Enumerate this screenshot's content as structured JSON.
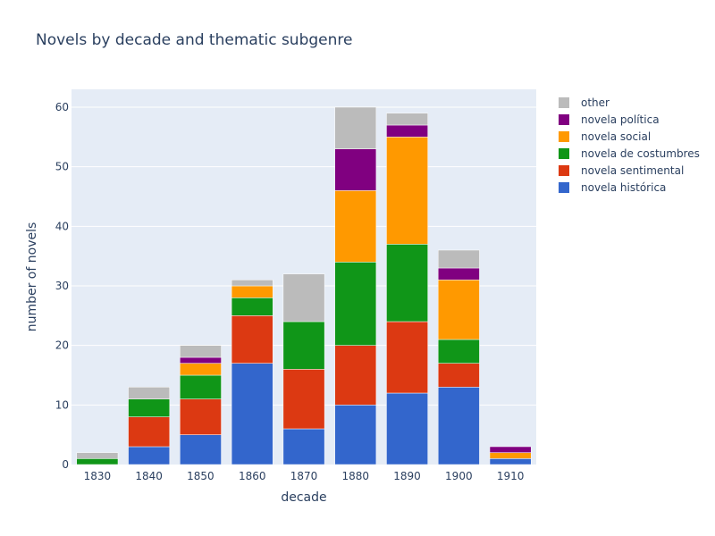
{
  "chart_data": {
    "type": "bar",
    "stacked": true,
    "title": "Novels by decade and thematic subgenre",
    "xlabel": "decade",
    "ylabel": "number of novels",
    "categories": [
      "1830",
      "1840",
      "1850",
      "1860",
      "1870",
      "1880",
      "1890",
      "1900",
      "1910"
    ],
    "ylim": [
      0,
      63
    ],
    "yticks": [
      0,
      10,
      20,
      30,
      40,
      50,
      60
    ],
    "grid": true,
    "legend_position": "top-right",
    "colors": {
      "plot_background": "#e5ecf6",
      "gridline": "#ffffff",
      "text": "#2a3f5f"
    },
    "series": [
      {
        "name": "novela histórica",
        "color": "#3366cc",
        "values": [
          0,
          3,
          5,
          17,
          6,
          10,
          12,
          13,
          1
        ]
      },
      {
        "name": "novela sentimental",
        "color": "#dc3912",
        "values": [
          0,
          5,
          6,
          8,
          10,
          10,
          12,
          4,
          0
        ]
      },
      {
        "name": "novela de costumbres",
        "color": "#109618",
        "values": [
          1,
          3,
          4,
          3,
          8,
          14,
          13,
          4,
          0
        ]
      },
      {
        "name": "novela social",
        "color": "#ff9900",
        "values": [
          0,
          0,
          2,
          2,
          0,
          12,
          18,
          10,
          1
        ]
      },
      {
        "name": "novela política",
        "color": "#800080",
        "values": [
          0,
          0,
          1,
          0,
          0,
          7,
          2,
          2,
          1
        ]
      },
      {
        "name": "other",
        "color": "#bbbbbb",
        "values": [
          1,
          2,
          2,
          1,
          8,
          7,
          2,
          3,
          0
        ]
      }
    ]
  }
}
